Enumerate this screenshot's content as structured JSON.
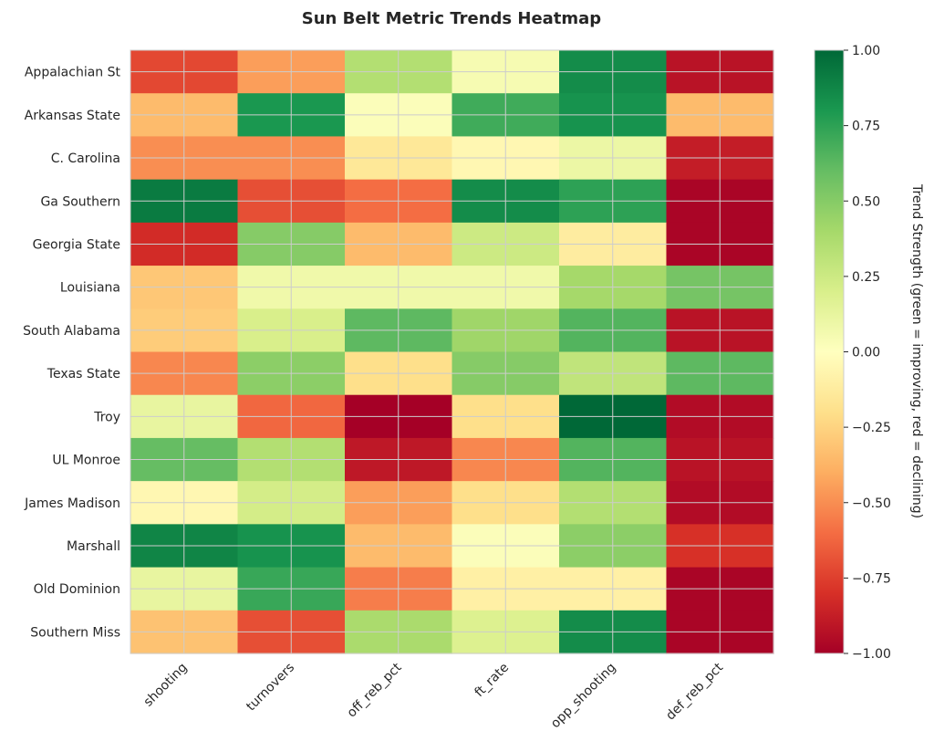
{
  "chart_data": {
    "type": "heatmap",
    "title": "Sun Belt Metric Trends Heatmap",
    "rows": [
      "Appalachian St",
      "Arkansas State",
      "C. Carolina",
      "Ga Southern",
      "Georgia State",
      "Louisiana",
      "South Alabama",
      "Texas State",
      "Troy",
      "UL Monroe",
      "James Madison",
      "Marshall",
      "Old Dominion",
      "Southern Miss"
    ],
    "columns": [
      "shooting",
      "turnovers",
      "off_reb_pct",
      "ft_rate",
      "opp_shooting",
      "def_reb_pct"
    ],
    "values": [
      [
        -0.72,
        -0.45,
        0.35,
        0.05,
        0.85,
        -0.92
      ],
      [
        -0.35,
        0.8,
        0.02,
        0.7,
        0.82,
        -0.35
      ],
      [
        -0.5,
        -0.5,
        -0.15,
        -0.05,
        0.1,
        -0.88
      ],
      [
        0.92,
        -0.7,
        -0.6,
        0.85,
        0.75,
        -0.98
      ],
      [
        -0.82,
        0.5,
        -0.35,
        0.25,
        -0.12,
        -0.98
      ],
      [
        -0.3,
        0.08,
        0.08,
        0.08,
        0.4,
        0.55
      ],
      [
        -0.28,
        0.2,
        0.62,
        0.42,
        0.65,
        -0.92
      ],
      [
        -0.52,
        0.48,
        -0.2,
        0.5,
        0.3,
        0.62
      ],
      [
        0.12,
        -0.62,
        -1.0,
        -0.2,
        1.0,
        -0.95
      ],
      [
        0.6,
        0.35,
        -0.9,
        -0.52,
        0.65,
        -0.92
      ],
      [
        -0.05,
        0.22,
        -0.45,
        -0.2,
        0.35,
        -0.95
      ],
      [
        0.88,
        0.82,
        -0.35,
        0.02,
        0.48,
        -0.8
      ],
      [
        0.12,
        0.72,
        -0.55,
        -0.1,
        -0.1,
        -0.98
      ],
      [
        -0.32,
        -0.7,
        0.38,
        0.18,
        0.85,
        -0.98
      ]
    ],
    "vmin": -1.0,
    "vmax": 1.0,
    "colormap": "RdYlGn",
    "colorbar": {
      "label": "Trend Strength (green = improving, red = declining)",
      "ticks": [
        1.0,
        0.75,
        0.5,
        0.25,
        0.0,
        -0.25,
        -0.5,
        -0.75,
        -1.0
      ],
      "tick_labels": [
        "1.00",
        "0.75",
        "0.50",
        "0.25",
        "0.00",
        "−0.25",
        "−0.50",
        "−0.75",
        "−1.00"
      ]
    },
    "grid": true
  }
}
